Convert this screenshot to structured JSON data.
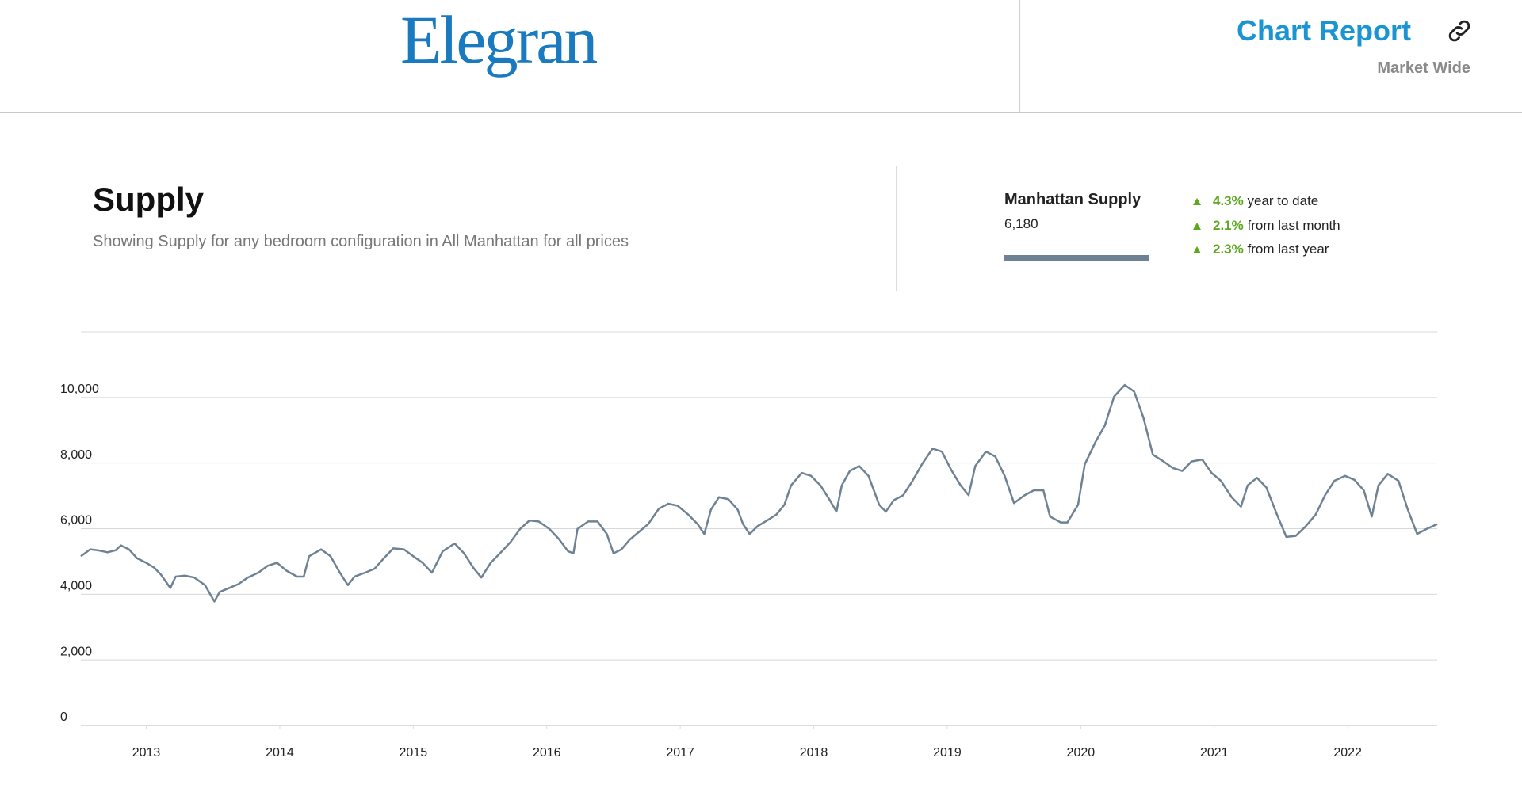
{
  "header": {
    "logo": "Elegran",
    "title": "Chart Report",
    "subtitle": "Market Wide"
  },
  "chart_data": {
    "type": "line",
    "title": "Supply",
    "subtitle": "Showing Supply for any bedroom configuration in All Manhattan for all prices",
    "legend_value": "6,180",
    "stats": [
      {
        "value": "4.3%",
        "label": "year to date"
      },
      {
        "value": "2.1%",
        "label": "from last month"
      },
      {
        "value": "2.3%",
        "label": "from last year"
      }
    ],
    "x": [
      2012.51,
      2012.58,
      2012.64,
      2012.71,
      2012.77,
      2012.81,
      2012.87,
      2012.93,
      2013.0,
      2013.06,
      2013.11,
      2013.18,
      2013.22,
      2013.29,
      2013.36,
      2013.44,
      2013.51,
      2013.55,
      2013.62,
      2013.69,
      2013.76,
      2013.84,
      2013.91,
      2013.98,
      2014.05,
      2014.13,
      2014.18,
      2014.22,
      2014.31,
      2014.38,
      2014.45,
      2014.51,
      2014.56,
      2014.64,
      2014.71,
      2014.78,
      2014.85,
      2014.93,
      2015.0,
      2015.07,
      2015.14,
      2015.22,
      2015.31,
      2015.38,
      2015.45,
      2015.51,
      2015.58,
      2015.65,
      2015.73,
      2015.8,
      2015.87,
      2015.94,
      2016.02,
      2016.09,
      2016.16,
      2016.2,
      2016.23,
      2016.31,
      2016.38,
      2016.45,
      2016.5,
      2016.56,
      2016.62,
      2016.69,
      2016.76,
      2016.84,
      2016.91,
      2016.98,
      2017.06,
      2017.13,
      2017.18,
      2017.23,
      2017.29,
      2017.36,
      2017.43,
      2017.47,
      2017.52,
      2017.58,
      2017.65,
      2017.72,
      2017.78,
      2017.83,
      2017.91,
      2017.98,
      2018.05,
      2018.12,
      2018.17,
      2018.21,
      2018.27,
      2018.34,
      2018.41,
      2018.49,
      2018.54,
      2018.6,
      2018.67,
      2018.74,
      2018.81,
      2018.89,
      2018.96,
      2019.03,
      2019.1,
      2019.16,
      2019.21,
      2019.29,
      2019.36,
      2019.43,
      2019.5,
      2019.58,
      2019.65,
      2019.72,
      2019.77,
      2019.85,
      2019.9,
      2019.98,
      2020.03,
      2020.11,
      2020.18,
      2020.25,
      2020.33,
      2020.4,
      2020.47,
      2020.54,
      2020.62,
      2020.69,
      2020.76,
      2020.83,
      2020.91,
      2020.98,
      2021.05,
      2021.13,
      2021.2,
      2021.25,
      2021.32,
      2021.39,
      2021.47,
      2021.54,
      2021.61,
      2021.68,
      2021.76,
      2021.83,
      2021.9,
      2021.98,
      2022.05,
      2022.12,
      2022.18,
      2022.23,
      2022.3,
      2022.38,
      2022.45,
      2022.52,
      2022.59,
      2022.67
    ],
    "series": [
      {
        "name": "Manhattan Supply",
        "color": "#6f8293",
        "values": [
          5160,
          5370,
          5340,
          5280,
          5340,
          5490,
          5370,
          5100,
          4960,
          4810,
          4600,
          4190,
          4540,
          4570,
          4510,
          4280,
          3780,
          4070,
          4190,
          4310,
          4510,
          4660,
          4870,
          4960,
          4720,
          4540,
          4540,
          5160,
          5370,
          5160,
          4660,
          4280,
          4540,
          4660,
          4780,
          5100,
          5400,
          5370,
          5160,
          4960,
          4660,
          5310,
          5550,
          5250,
          4810,
          4510,
          4960,
          5250,
          5600,
          5990,
          6250,
          6220,
          5990,
          5690,
          5310,
          5250,
          5990,
          6220,
          6220,
          5840,
          5250,
          5370,
          5660,
          5900,
          6140,
          6610,
          6760,
          6700,
          6430,
          6140,
          5840,
          6580,
          6960,
          6900,
          6580,
          6140,
          5840,
          6080,
          6250,
          6430,
          6730,
          7320,
          7700,
          7610,
          7320,
          6870,
          6520,
          7320,
          7760,
          7910,
          7610,
          6730,
          6520,
          6870,
          7020,
          7460,
          7960,
          8440,
          8350,
          7790,
          7320,
          7020,
          7910,
          8350,
          8200,
          7610,
          6780,
          7020,
          7170,
          7170,
          6370,
          6190,
          6190,
          6730,
          7960,
          8640,
          9140,
          10030,
          10380,
          10180,
          9380,
          8260,
          8050,
          7850,
          7760,
          8050,
          8110,
          7700,
          7460,
          6960,
          6670,
          7320,
          7550,
          7260,
          6430,
          5750,
          5780,
          6050,
          6430,
          7020,
          7460,
          7610,
          7490,
          7170,
          6370,
          7320,
          7670,
          7460,
          6580,
          5840,
          5990,
          6140
        ]
      }
    ],
    "xlim": [
      2012.51,
      2022.67
    ],
    "xticks": [
      2013,
      2014,
      2015,
      2016,
      2017,
      2018,
      2019,
      2020,
      2021,
      2022
    ],
    "ylim": [
      0,
      12000
    ],
    "yticks": [
      0,
      {
        "value": 2000,
        "label": "2,000"
      },
      {
        "value": 4000,
        "label": "4,000"
      },
      {
        "value": 6000,
        "label": "6,000"
      },
      {
        "value": 8000,
        "label": "8,000"
      },
      {
        "value": 10000,
        "label": "10,000"
      }
    ],
    "grid": true
  }
}
